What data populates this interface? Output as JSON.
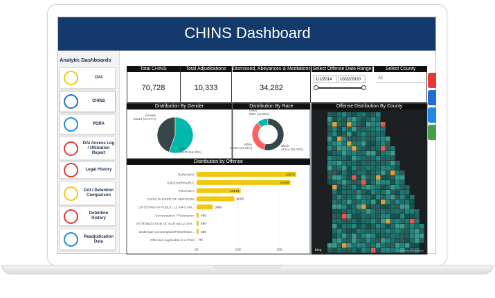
{
  "header": {
    "title": "CHINS Dashboard"
  },
  "sidebar": {
    "title": "Analytic Dashboards",
    "items": [
      "DAI",
      "CHINS",
      "PDRA",
      "DAI Access Log / Utilization Report",
      "Legal History",
      "DAI / Detention Comparison",
      "Detention History",
      "Readjudication Data"
    ]
  },
  "kpis": [
    {
      "label": "Total CHINS",
      "value": "70,728"
    },
    {
      "label": "Total Adjudications",
      "value": "10,333"
    },
    {
      "label": "Dismissed, Abeyances & Mediations",
      "value": "34,282"
    }
  ],
  "filters": {
    "date_range": {
      "label": "Select Offense Date Range",
      "start": "1/1/2014",
      "end": "10/22/2020"
    },
    "county": {
      "label": "Select County",
      "value": "All"
    }
  },
  "gender_chart": {
    "type": "pie",
    "title": "Distribution By Gender",
    "categories": [
      "Female",
      "Male"
    ],
    "values": [
      32224,
      40075
    ],
    "value_labels": [
      "32224 (44.57%)",
      "40075 (55.43%)"
    ],
    "colors": [
      "#374649",
      "#01b8aa"
    ]
  },
  "race_chart": {
    "type": "donut",
    "title": "Distribution By Race",
    "categories": [
      "Other",
      "White",
      "Black"
    ],
    "values": [
      8937,
      26220,
      41314
    ],
    "value_labels": [
      "8937 (11.69%)",
      "26220 (34.29%)",
      "41314 (54.03%)"
    ],
    "colors": [
      "#01b8aa",
      "#fd625e",
      "#374649"
    ]
  },
  "offense_chart": {
    "type": "bar",
    "title": "Distribution by Offense",
    "categories": [
      "RUNAWAY",
      "UNGOVERNABLE",
      "TRUANCY",
      "CHILD IN NEED OF SERVICES",
      "LOITERING IN PUBLIC 12 AM-5 AM...",
      "Consumption / Possession",
      "PATRONIZATION OF BAR W/ALCOH...",
      "Underage Consumption/Possession...",
      "Offenses Applicable to a Child"
    ],
    "values": [
      23979,
      22589,
      10621,
      9090,
      3883,
      480,
      480,
      480,
      86
    ],
    "color": "#f2c80f",
    "xlim": [
      0,
      25000
    ],
    "xticks": [
      {
        "value": 0,
        "label": "0K"
      },
      {
        "value": 10000,
        "label": "10K"
      },
      {
        "value": 20000,
        "label": "20K"
      }
    ]
  },
  "map": {
    "title": "Offense Distribution By County",
    "provider": "bing",
    "copyright": "© 2020 Microsoft Corporation"
  }
}
